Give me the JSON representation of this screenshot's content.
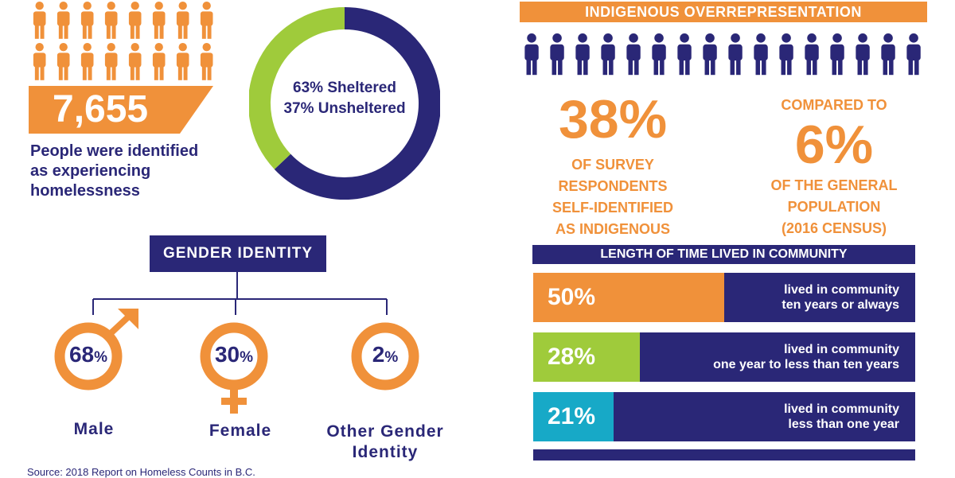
{
  "homeless": {
    "total": "7,655",
    "caption_lines": [
      "People were identified",
      "as experiencing",
      "homelessness"
    ],
    "icon_name": "person-icon",
    "icon_color": "#f0913a"
  },
  "shelter": {
    "label_sheltered": "63% Sheltered",
    "label_unsheltered": "37% Unsheltered"
  },
  "gender": {
    "title": "GENDER IDENTITY",
    "items": [
      {
        "pct": "68",
        "unit": "%",
        "label_lines": [
          "Male"
        ],
        "symbol": "male-symbol-icon"
      },
      {
        "pct": "30",
        "unit": "%",
        "label_lines": [
          "Female"
        ],
        "symbol": "female-symbol-icon"
      },
      {
        "pct": "2",
        "unit": "%",
        "label_lines": [
          "Other Gender",
          "Identity"
        ],
        "symbol": "ring-icon"
      }
    ]
  },
  "indigenous": {
    "banner": "INDIGENOUS OVERREPRESENTATION",
    "survey_pct": "38%",
    "survey_lines": [
      "OF SURVEY",
      "RESPONDENTS",
      "SELF-IDENTIFIED",
      "AS INDIGENOUS"
    ],
    "compared": "COMPARED TO",
    "general_pct": "6%",
    "general_lines": [
      "OF THE GENERAL",
      "POPULATION",
      "(2016 CENSUS)"
    ],
    "icon_color": "#2a2777"
  },
  "length": {
    "title": "LENGTH OF TIME LIVED IN COMMUNITY"
  },
  "source": "Source: 2018 Report on Homeless Counts in B.C.",
  "colors": {
    "orange": "#f0913a",
    "navy": "#2a2777",
    "green": "#9fcb3b",
    "teal": "#17a9c7"
  },
  "chart_data": [
    {
      "type": "pie",
      "categories": [
        "Sheltered",
        "Unsheltered"
      ],
      "values": [
        63,
        37
      ],
      "colors": [
        "#2a2777",
        "#9fcb3b"
      ],
      "title": ""
    },
    {
      "type": "bar",
      "title": "LENGTH OF TIME LIVED IN COMMUNITY",
      "categories": [
        "lived in community ten years or always",
        "lived in community one year to less than ten years",
        "lived in community less than one year"
      ],
      "category_lines": [
        [
          "lived in community",
          "ten years or always"
        ],
        [
          "lived in community",
          "one year to less than ten years"
        ],
        [
          "lived in community",
          "less than one year"
        ]
      ],
      "values": [
        50,
        28,
        21
      ],
      "value_labels": [
        "50%",
        "28%",
        "21%"
      ],
      "colors": [
        "#f0913a",
        "#9fcb3b",
        "#17a9c7"
      ],
      "xlim": [
        0,
        100
      ]
    }
  ]
}
